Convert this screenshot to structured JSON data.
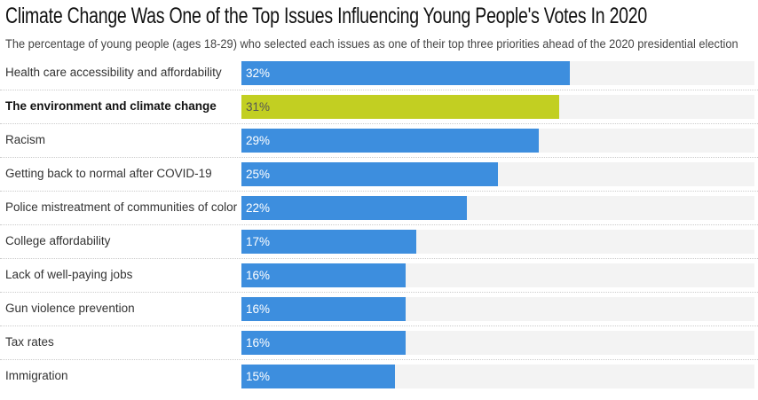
{
  "chart_data": {
    "type": "bar",
    "orientation": "horizontal",
    "title": "Climate Change Was One of the Top Issues Influencing Young People's Votes In 2020",
    "subtitle": "The percentage of young people (ages 18-29) who selected each issues as one of their top three priorities ahead of the 2020 presidential election",
    "categories": [
      "Health care accessibility and affordability",
      "The environment and climate change",
      "Racism",
      "Getting back to normal after COVID-19",
      "Police mistreatment of communities of color",
      "College affordability",
      "Lack of well-paying jobs",
      "Gun violence prevention",
      "Tax rates",
      "Immigration"
    ],
    "values": [
      32,
      31,
      29,
      25,
      22,
      17,
      16,
      16,
      16,
      15
    ],
    "value_labels": [
      "32%",
      "31%",
      "29%",
      "25%",
      "22%",
      "17%",
      "16%",
      "16%",
      "16%",
      "15%"
    ],
    "highlight_index": 1,
    "xlim": [
      0,
      50
    ],
    "colors": {
      "default": "#3d8ede",
      "highlight": "#c2cf22",
      "track": "#f3f3f3"
    }
  }
}
